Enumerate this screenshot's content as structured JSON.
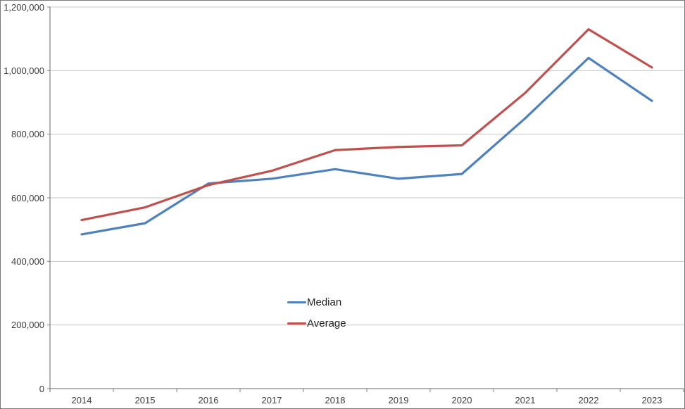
{
  "window": {
    "background": "#ffffff",
    "frame_border_color": "#7a7a7a"
  },
  "chart_data": {
    "type": "line",
    "title": "",
    "xlabel": "",
    "ylabel": "",
    "categories": [
      "2014",
      "2015",
      "2016",
      "2017",
      "2018",
      "2019",
      "2020",
      "2021",
      "2022",
      "2023"
    ],
    "series": [
      {
        "name": "Median",
        "color": "#4F81BD",
        "values": [
          485000,
          520000,
          645000,
          660000,
          690000,
          660000,
          675000,
          850000,
          1040000,
          905000
        ]
      },
      {
        "name": "Average",
        "color": "#C0504D",
        "values": [
          530000,
          570000,
          640000,
          685000,
          750000,
          760000,
          765000,
          930000,
          1130000,
          1010000
        ]
      }
    ],
    "ylim": [
      0,
      1200000
    ],
    "ytick_interval": 200000,
    "yticklabels": [
      "0",
      "200,000",
      "400,000",
      "600,000",
      "800,000",
      "1,000,000",
      "1,200,000"
    ],
    "grid": "horizontal",
    "legend_position": "inside-center",
    "axis_color": "#808080",
    "grid_color": "#c6c6c6",
    "label_color": "#3d3d3d"
  }
}
